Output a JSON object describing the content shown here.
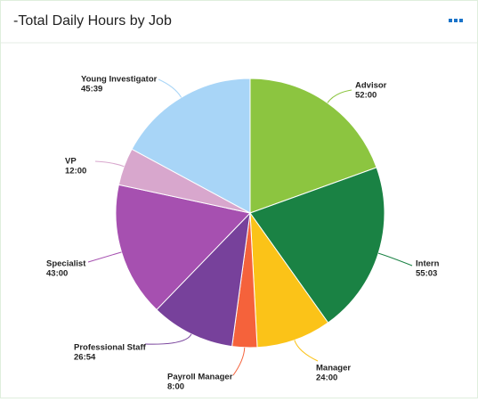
{
  "chart_data": {
    "type": "pie",
    "title": "-Total Daily Hours by Job",
    "categories": [
      "Advisor",
      "Intern",
      "Manager",
      "Payroll Manager",
      "Professional Staff",
      "Specialist",
      "VP",
      "Young Investigator"
    ],
    "values": [
      52,
      55.05,
      24,
      8,
      26.9,
      43,
      12,
      45.65
    ],
    "value_labels": [
      "52:00",
      "55:03",
      "24:00",
      "8:00",
      "26:54",
      "43:00",
      "12:00",
      "45:39"
    ],
    "colors": [
      "#8cc540",
      "#1a8244",
      "#fbc318",
      "#f5623b",
      "#77419b",
      "#a650b0",
      "#d8a7cd",
      "#a8d5f7"
    ]
  }
}
